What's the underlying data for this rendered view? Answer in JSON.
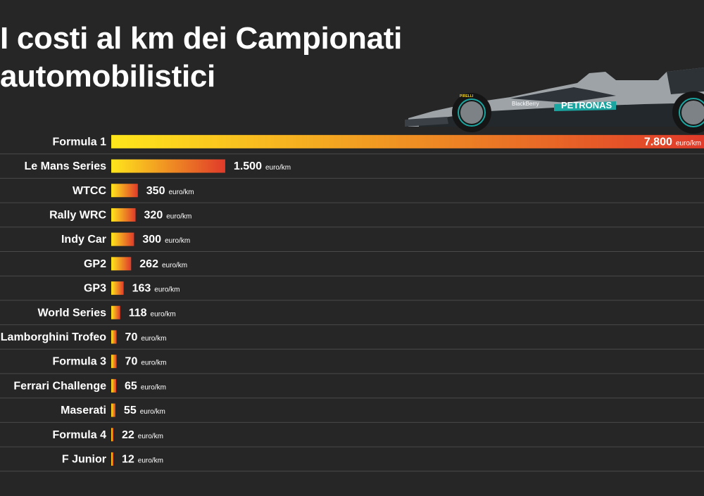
{
  "title": "I costi al km dei Campionati automobilistici",
  "colors": {
    "background": "#262626",
    "bar_start": "#ffe61c",
    "bar_end": "#e03a2a",
    "separator": "#4a4a4a",
    "text": "#ffffff"
  },
  "illustration": {
    "icon": "f1-car-icon",
    "sponsors": [
      "PETRONAS",
      "BlackBerry",
      "PIRELLI"
    ]
  },
  "chart_data": {
    "type": "bar",
    "orientation": "horizontal",
    "unit": "euro/km",
    "xlim": [
      0,
      7800
    ],
    "categories": [
      "Formula 1",
      "Le Mans Series",
      "WTCC",
      "Rally WRC",
      "Indy Car",
      "GP2",
      "GP3",
      "World Series",
      "Lamborghini Trofeo",
      "Formula 3",
      "Ferrari Challenge",
      "Maserati",
      "Formula 4",
      "F Junior"
    ],
    "values": [
      7800,
      1500,
      350,
      320,
      300,
      262,
      163,
      118,
      70,
      70,
      65,
      55,
      22,
      12
    ],
    "value_labels": [
      "7.800",
      "1.500",
      "350",
      "320",
      "300",
      "262",
      "163",
      "118",
      "70",
      "70",
      "65",
      "55",
      "22",
      "12"
    ]
  }
}
